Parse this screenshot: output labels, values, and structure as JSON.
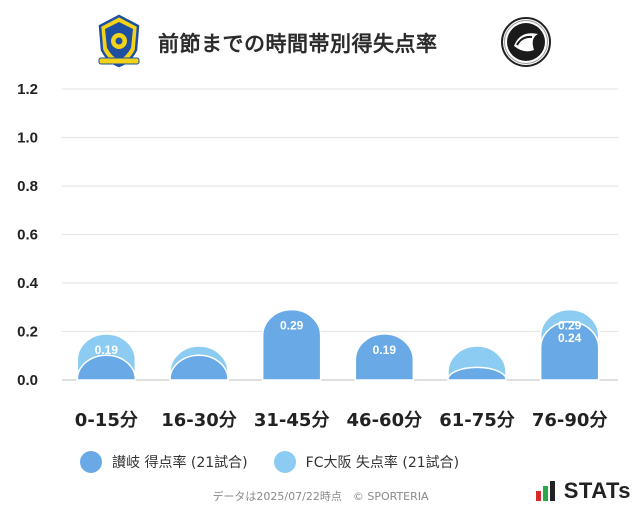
{
  "header": {
    "title": "前節までの時間帯別得失点率",
    "home_logo_icon": "kamatamare-sanuki-crest-icon",
    "away_logo_icon": "fc-osaka-crest-icon"
  },
  "colors": {
    "home": "#68a9e6",
    "away": "#8ccbf2",
    "grid": "#e6e6e6",
    "axis": "#cccccc"
  },
  "legend": {
    "home_label": "讃岐 得点率 (21試合)",
    "away_label": "FC大阪 失点率 (21試合)"
  },
  "chart_data": {
    "type": "bar",
    "categories": [
      "0-15分",
      "16-30分",
      "31-45分",
      "46-60分",
      "61-75分",
      "76-90分"
    ],
    "series": [
      {
        "name": "讃岐 得点率 (21試合)",
        "values": [
          0.1,
          0.1,
          0.29,
          0.19,
          0.05,
          0.24
        ],
        "labels": [
          "",
          "",
          "0.29",
          "0.19",
          "",
          "0.24"
        ]
      },
      {
        "name": "FC大阪 失点率 (21試合)",
        "values": [
          0.19,
          0.14,
          0.29,
          0.19,
          0.14,
          0.29
        ],
        "labels": [
          "0.19",
          "",
          "",
          "",
          "",
          "0.29"
        ]
      }
    ],
    "yticks": [
      "0.0",
      "0.2",
      "0.4",
      "0.6",
      "0.8",
      "1.0",
      "1.2"
    ],
    "ylim": [
      0,
      1.2
    ],
    "grid": true,
    "legend_position": "bottom-left"
  },
  "footer": {
    "note": "データは2025/07/22時点　© SPORTERIA",
    "brand": "STATs",
    "brand_icon": "stats-bars-icon"
  }
}
